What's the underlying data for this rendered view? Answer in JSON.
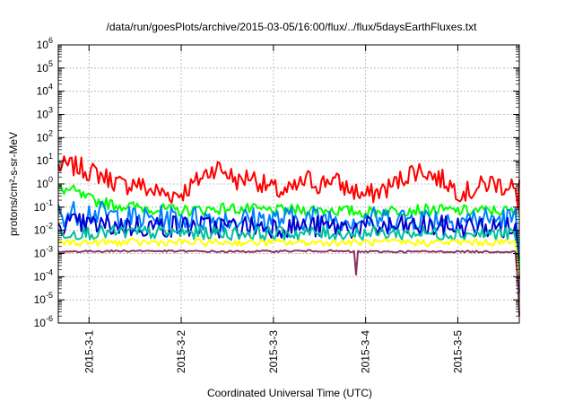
{
  "chart_data": {
    "type": "line",
    "title": "/data/run/goesPlots/archive/2015-03-05/16:00/flux/../flux/5daysEarthFluxes.txt",
    "xlabel": "Coordinated Universal Time (UTC)",
    "ylabel": "protons/cm²-s-sr-MeV",
    "y_scale": "log",
    "ylim": [
      1e-06,
      1000000.0
    ],
    "y_ticks": [
      {
        "base": "10",
        "exp": "-6"
      },
      {
        "base": "10",
        "exp": "-5"
      },
      {
        "base": "10",
        "exp": "-4"
      },
      {
        "base": "10",
        "exp": "-3"
      },
      {
        "base": "10",
        "exp": "-2"
      },
      {
        "base": "10",
        "exp": "-1"
      },
      {
        "base": "10",
        "exp": "0"
      },
      {
        "base": "10",
        "exp": "1"
      },
      {
        "base": "10",
        "exp": "2"
      },
      {
        "base": "10",
        "exp": "3"
      },
      {
        "base": "10",
        "exp": "4"
      },
      {
        "base": "10",
        "exp": "5"
      },
      {
        "base": "10",
        "exp": "6"
      }
    ],
    "xlim": [
      "2015-02-28 16:00",
      "2015-03-05 16:00"
    ],
    "x_ticks": [
      "2015-3-1",
      "2015-3-2",
      "2015-3-3",
      "2015-3-4",
      "2015-3-5"
    ],
    "grid": true,
    "series": [
      {
        "color": "#ff0000",
        "points": [
          [
            "2015-02-28 16:00",
            5.5
          ],
          [
            "2015-02-28 19:00",
            6
          ],
          [
            "2015-02-28 22:00",
            5
          ],
          [
            "2015-03-01 00:00",
            3.5
          ],
          [
            "2015-03-01 03:00",
            2.5
          ],
          [
            "2015-03-01 06:00",
            1.5
          ],
          [
            "2015-03-01 09:00",
            0.8
          ],
          [
            "2015-03-01 12:00",
            1.2
          ],
          [
            "2015-03-01 15:00",
            0.6
          ],
          [
            "2015-03-01 18:00",
            0.45
          ],
          [
            "2015-03-01 21:00",
            0.35
          ],
          [
            "2015-03-02 00:00",
            0.4
          ],
          [
            "2015-03-02 03:00",
            0.9
          ],
          [
            "2015-03-02 06:00",
            2.5
          ],
          [
            "2015-03-02 09:00",
            5.5
          ],
          [
            "2015-03-02 12:00",
            3
          ],
          [
            "2015-03-02 15:00",
            1.2
          ],
          [
            "2015-03-02 18:00",
            2.5
          ],
          [
            "2015-03-02 21:00",
            1
          ],
          [
            "2015-03-03 00:00",
            0.6
          ],
          [
            "2015-03-03 03:00",
            0.4
          ],
          [
            "2015-03-03 06:00",
            0.7
          ],
          [
            "2015-03-03 09:00",
            1.6
          ],
          [
            "2015-03-03 12:00",
            0.9
          ],
          [
            "2015-03-03 15:00",
            1.8
          ],
          [
            "2015-03-03 18:00",
            0.8
          ],
          [
            "2015-03-03 21:00",
            0.5
          ],
          [
            "2015-03-04 00:00",
            0.3
          ],
          [
            "2015-03-04 03:00",
            0.45
          ],
          [
            "2015-03-04 06:00",
            0.7
          ],
          [
            "2015-03-04 09:00",
            1.5
          ],
          [
            "2015-03-04 12:00",
            3.5
          ],
          [
            "2015-03-04 15:00",
            4
          ],
          [
            "2015-03-04 18:00",
            2
          ],
          [
            "2015-03-04 21:00",
            1.3
          ],
          [
            "2015-03-05 00:00",
            0.5
          ],
          [
            "2015-03-05 03:00",
            0.45
          ],
          [
            "2015-03-05 06:00",
            0.8
          ],
          [
            "2015-03-05 09:00",
            1.2
          ],
          [
            "2015-03-05 12:00",
            0.8
          ],
          [
            "2015-03-05 14:00",
            1.2
          ],
          [
            "2015-03-05 15:00",
            0.3
          ],
          [
            "2015-03-05 15:40",
            0.09
          ],
          [
            "2015-03-05 16:00",
            1.5
          ]
        ]
      },
      {
        "color": "#00ff00",
        "points": [
          [
            "2015-02-28 16:00",
            0.6
          ],
          [
            "2015-02-28 20:00",
            0.5
          ],
          [
            "2015-02-28 23:00",
            0.25
          ],
          [
            "2015-03-01 02:00",
            0.18
          ],
          [
            "2015-03-01 06:00",
            0.13
          ],
          [
            "2015-03-01 12:00",
            0.1
          ],
          [
            "2015-03-02 00:00",
            0.07
          ],
          [
            "2015-03-02 12:00",
            0.09
          ],
          [
            "2015-03-03 00:00",
            0.07
          ],
          [
            "2015-03-03 12:00",
            0.08
          ],
          [
            "2015-03-04 00:00",
            0.06
          ],
          [
            "2015-03-04 12:00",
            0.08
          ],
          [
            "2015-03-05 00:00",
            0.07
          ],
          [
            "2015-03-05 12:00",
            0.07
          ],
          [
            "2015-03-05 15:00",
            0.06
          ],
          [
            "2015-03-05 15:40",
            0.003
          ],
          [
            "2015-03-05 16:00",
            0.0005
          ]
        ]
      },
      {
        "color": "#0080ff",
        "points": [
          [
            "2015-02-28 16:00",
            0.05
          ],
          [
            "2015-03-01 00:00",
            0.06
          ],
          [
            "2015-03-01 12:00",
            0.03
          ],
          [
            "2015-03-02 00:00",
            0.035
          ],
          [
            "2015-03-02 12:00",
            0.03
          ],
          [
            "2015-03-03 00:00",
            0.03
          ],
          [
            "2015-03-03 12:00",
            0.035
          ],
          [
            "2015-03-04 00:00",
            0.03
          ],
          [
            "2015-03-04 12:00",
            0.035
          ],
          [
            "2015-03-05 00:00",
            0.03
          ],
          [
            "2015-03-05 15:00",
            0.03
          ],
          [
            "2015-03-05 15:40",
            0.002
          ],
          [
            "2015-03-05 16:00",
            0.0002
          ]
        ]
      },
      {
        "color": "#0000cc",
        "points": [
          [
            "2015-02-28 16:00",
            0.02
          ],
          [
            "2015-03-01 00:00",
            0.017
          ],
          [
            "2015-03-01 12:00",
            0.015
          ],
          [
            "2015-03-02 00:00",
            0.015
          ],
          [
            "2015-03-02 12:00",
            0.014
          ],
          [
            "2015-03-03 00:00",
            0.015
          ],
          [
            "2015-03-03 12:00",
            0.014
          ],
          [
            "2015-03-04 00:00",
            0.013
          ],
          [
            "2015-03-04 12:00",
            0.014
          ],
          [
            "2015-03-05 00:00",
            0.014
          ],
          [
            "2015-03-05 15:00",
            0.012
          ],
          [
            "2015-03-05 15:40",
            0.0008
          ],
          [
            "2015-03-05 16:00",
            8e-05
          ]
        ]
      },
      {
        "color": "#00bfa0",
        "points": [
          [
            "2015-02-28 16:00",
            0.008
          ],
          [
            "2015-03-01 12:00",
            0.008
          ],
          [
            "2015-03-02 12:00",
            0.0075
          ],
          [
            "2015-03-03 12:00",
            0.0075
          ],
          [
            "2015-03-04 12:00",
            0.0075
          ],
          [
            "2015-03-05 15:00",
            0.007
          ],
          [
            "2015-03-05 15:40",
            0.0005
          ],
          [
            "2015-03-05 16:00",
            2e-05
          ]
        ]
      },
      {
        "color": "#ffff00",
        "points": [
          [
            "2015-02-28 16:00",
            0.003
          ],
          [
            "2015-03-01 12:00",
            0.003
          ],
          [
            "2015-03-02 12:00",
            0.003
          ],
          [
            "2015-03-03 12:00",
            0.003
          ],
          [
            "2015-03-04 12:00",
            0.003
          ],
          [
            "2015-03-05 15:00",
            0.003
          ],
          [
            "2015-03-05 15:40",
            0.0002
          ],
          [
            "2015-03-05 16:00",
            8e-06
          ]
        ]
      },
      {
        "color": "#883366",
        "points": [
          [
            "2015-02-28 16:00",
            0.0012
          ],
          [
            "2015-03-01 12:00",
            0.0013
          ],
          [
            "2015-03-02 12:00",
            0.0012
          ],
          [
            "2015-03-03 12:00",
            0.0013
          ],
          [
            "2015-03-03 21:00",
            0.0012
          ],
          [
            "2015-03-03 21:30",
            0.00012
          ],
          [
            "2015-03-03 22:00",
            0.0012
          ],
          [
            "2015-03-04 12:00",
            0.0012
          ],
          [
            "2015-03-05 15:00",
            0.0012
          ],
          [
            "2015-03-05 15:40",
            5e-05
          ],
          [
            "2015-03-05 16:00",
            2e-06
          ]
        ]
      }
    ]
  }
}
